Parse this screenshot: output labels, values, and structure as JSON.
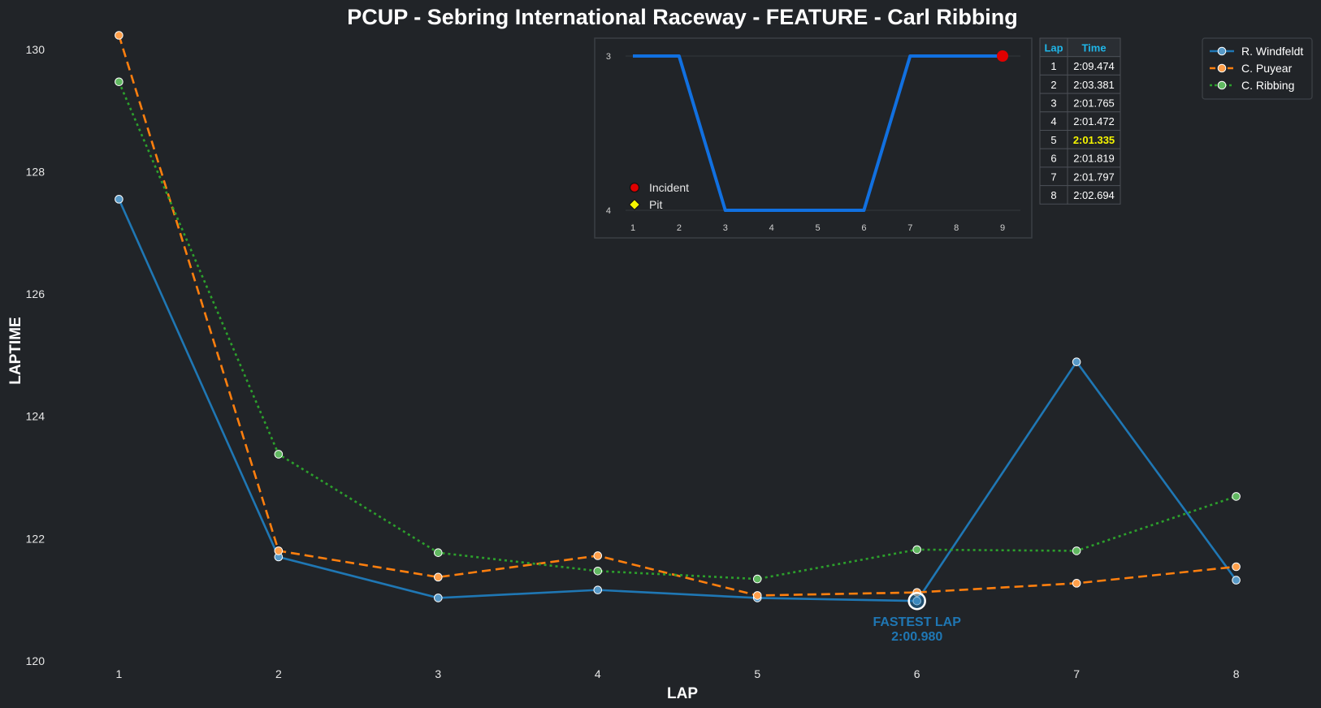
{
  "chart_data": [
    {
      "type": "line",
      "title": "PCUP - Sebring International Raceway - FEATURE - Carl Ribbing",
      "xlabel": "LAP",
      "ylabel": "LAPTIME",
      "x": [
        1,
        2,
        3,
        4,
        5,
        6,
        7,
        8
      ],
      "xlim": [
        0.55,
        8.45
      ],
      "ylim": [
        120,
        130.25
      ],
      "y_ticks": [
        120,
        122,
        124,
        126,
        128,
        130
      ],
      "grid": false,
      "legend_position": "top-right",
      "series": [
        {
          "name": "R. Windfeldt",
          "color": "#1f77b4",
          "style": "solid",
          "values": [
            127.55,
            121.7,
            121.03,
            121.16,
            121.03,
            120.98,
            124.89,
            121.32
          ]
        },
        {
          "name": "C. Puyear",
          "color": "#ff7f0e",
          "style": "dashed",
          "values": [
            130.23,
            121.8,
            121.37,
            121.72,
            121.07,
            121.12,
            121.27,
            121.54
          ]
        },
        {
          "name": "C. Ribbing",
          "color": "#2ca02c",
          "style": "dotted",
          "values": [
            129.47,
            123.38,
            121.77,
            121.47,
            121.34,
            121.82,
            121.8,
            122.69
          ]
        }
      ],
      "annotation": {
        "label": "FASTEST LAP",
        "value": "2:00.980",
        "x": 6,
        "y": 120.98,
        "color": "#1f77b4"
      }
    },
    {
      "type": "line",
      "x": [
        1,
        2,
        3,
        4,
        5,
        6,
        7,
        8,
        9
      ],
      "values": [
        3,
        3,
        4,
        4,
        4,
        4,
        3,
        3,
        3
      ],
      "y_ticks": [
        3,
        4
      ],
      "ylim": [
        3,
        4
      ],
      "y_inverted": true,
      "color": "#1170e0",
      "legend": [
        {
          "label": "Incident",
          "marker": "circle",
          "color": "#e00000"
        },
        {
          "label": "Pit",
          "marker": "diamond",
          "color": "#f5f500"
        }
      ],
      "incidents": [
        {
          "x": 9,
          "y": 3
        }
      ],
      "pits": []
    }
  ],
  "lap_table": {
    "headers": [
      "Lap",
      "Time"
    ],
    "rows": [
      [
        "1",
        "2:09.474"
      ],
      [
        "2",
        "2:03.381"
      ],
      [
        "3",
        "2:01.765"
      ],
      [
        "4",
        "2:01.472"
      ],
      [
        "5",
        "2:01.335"
      ],
      [
        "6",
        "2:01.819"
      ],
      [
        "7",
        "2:01.797"
      ],
      [
        "8",
        "2:02.694"
      ]
    ],
    "best_row_index": 4,
    "header_color": "#1fb6e8",
    "best_color": "#f5f500"
  },
  "colors": {
    "background": "#212428",
    "text": "#ffffff"
  }
}
